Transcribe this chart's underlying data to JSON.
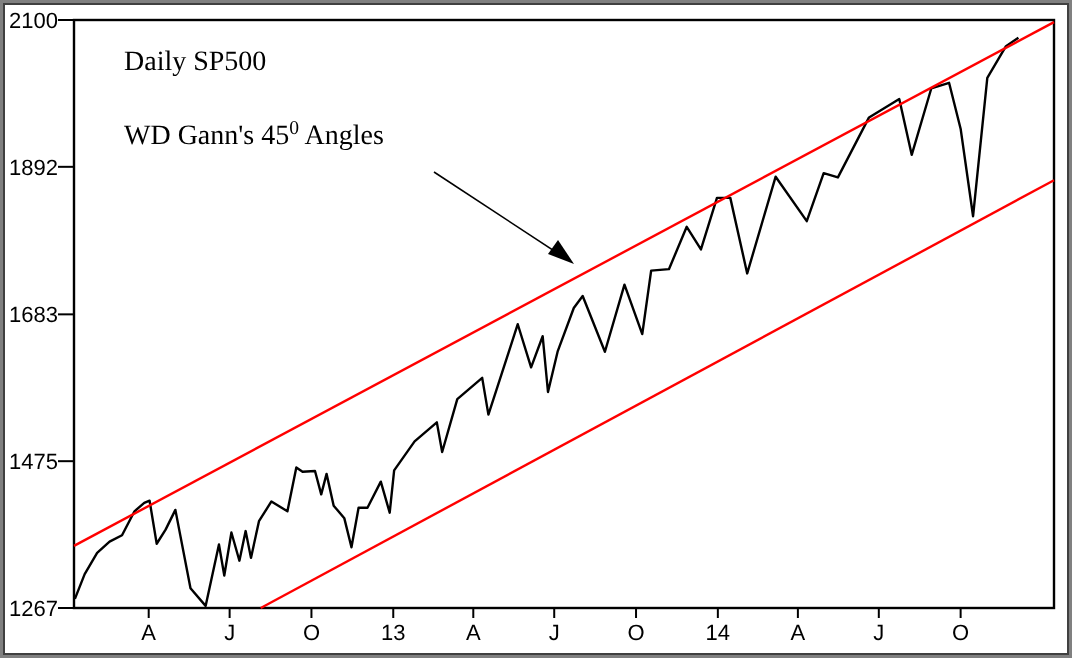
{
  "chart_data": {
    "type": "line",
    "annotations": [
      "Daily SP500",
      "WD Gann's 45$^{0}$ Angles"
    ],
    "xlim": [
      "2012-01-08",
      "2015-01-14"
    ],
    "xticks": [
      {
        "value": "2012-04-01",
        "label": "A"
      },
      {
        "value": "2012-07-01",
        "label": "J"
      },
      {
        "value": "2012-10-01",
        "label": "O"
      },
      {
        "value": "2013-01-01",
        "label": "13"
      },
      {
        "value": "2013-04-01",
        "label": "A"
      },
      {
        "value": "2013-07-01",
        "label": "J"
      },
      {
        "value": "2013-10-01",
        "label": "O"
      },
      {
        "value": "2014-01-01",
        "label": "14"
      },
      {
        "value": "2014-04-01",
        "label": "A"
      },
      {
        "value": "2014-07-01",
        "label": "J"
      },
      {
        "value": "2014-10-01",
        "label": "O"
      }
    ],
    "ylim": [
      1267,
      2100
    ],
    "yticks": [
      1267,
      1475,
      1683,
      1892,
      2100
    ],
    "grid": false,
    "line_style": "solid",
    "series": [
      {
        "color": "#000000",
        "x": [
          "2012-01-09",
          "2012-01-20",
          "2012-02-03",
          "2012-02-17",
          "2012-03-02",
          "2012-03-16",
          "2012-03-27",
          "2012-04-02",
          "2012-04-10",
          "2012-04-20",
          "2012-05-01",
          "2012-05-18",
          "2012-06-04",
          "2012-06-19",
          "2012-06-25",
          "2012-07-03",
          "2012-07-12",
          "2012-07-19",
          "2012-07-25",
          "2012-08-03",
          "2012-08-17",
          "2012-09-04",
          "2012-09-14",
          "2012-09-21",
          "2012-10-05",
          "2012-10-12",
          "2012-10-18",
          "2012-10-26",
          "2012-11-07",
          "2012-11-15",
          "2012-11-23",
          "2012-12-03",
          "2012-12-18",
          "2012-12-28",
          "2013-01-02",
          "2013-01-25",
          "2013-02-19",
          "2013-02-25",
          "2013-03-14",
          "2013-04-11",
          "2013-04-18",
          "2013-05-21",
          "2013-06-05",
          "2013-06-18",
          "2013-06-24",
          "2013-07-05",
          "2013-07-23",
          "2013-08-02",
          "2013-08-27",
          "2013-09-18",
          "2013-10-08",
          "2013-10-18",
          "2013-11-07",
          "2013-11-27",
          "2013-12-13",
          "2013-12-31",
          "2014-01-15",
          "2014-02-03",
          "2014-03-07",
          "2014-04-11",
          "2014-04-30",
          "2014-05-16",
          "2014-06-20",
          "2014-07-24",
          "2014-08-07",
          "2014-08-29",
          "2014-09-18",
          "2014-10-01",
          "2014-10-15",
          "2014-10-31",
          "2014-11-21",
          "2014-12-05"
        ],
        "values": [
          1280,
          1315,
          1345,
          1361,
          1370,
          1404,
          1416,
          1419,
          1358,
          1378,
          1406,
          1295,
          1270,
          1357,
          1313,
          1374,
          1334,
          1376,
          1338,
          1390,
          1418,
          1404,
          1466,
          1460,
          1461,
          1428,
          1457,
          1412,
          1394,
          1353,
          1409,
          1409,
          1446,
          1402,
          1462,
          1503,
          1530,
          1488,
          1563,
          1593,
          1541,
          1669,
          1608,
          1652,
          1573,
          1631,
          1692,
          1709,
          1630,
          1725,
          1655,
          1745,
          1747,
          1807,
          1775,
          1848,
          1848,
          1741,
          1878,
          1815,
          1883,
          1877,
          1962,
          1988,
          1909,
          2003,
          2011,
          1946,
          1822,
          2018,
          2063,
          2075
        ]
      },
      {
        "color": "#ff0000",
        "x": [
          "2012-01-08",
          "2015-01-14"
        ],
        "values": [
          1355,
          2097
        ]
      },
      {
        "color": "#ff0000",
        "x": [
          "2012-08-05",
          "2015-01-14"
        ],
        "values": [
          1267,
          1873
        ]
      }
    ]
  }
}
